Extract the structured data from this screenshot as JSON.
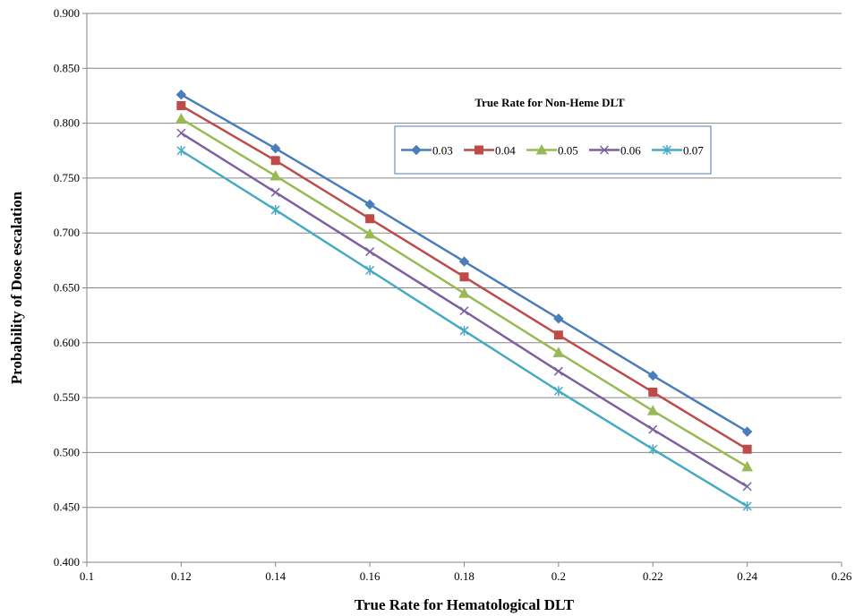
{
  "chart_data": {
    "type": "line",
    "title": "",
    "xlabel": "True Rate for Hematological DLT",
    "ylabel": "Probability of Dose escalation",
    "xlim": [
      0.1,
      0.26
    ],
    "ylim": [
      0.4,
      0.9
    ],
    "x_ticks": [
      "0.1",
      "0.12",
      "0.14",
      "0.16",
      "0.18",
      "0.2",
      "0.22",
      "0.24",
      "0.26"
    ],
    "y_ticks": [
      "0.400",
      "0.450",
      "0.500",
      "0.550",
      "0.600",
      "0.650",
      "0.700",
      "0.750",
      "0.800",
      "0.850",
      "0.900"
    ],
    "grid": "horizontal",
    "legend": {
      "title": "True Rate for Non-Heme DLT",
      "placement": "top-right"
    },
    "x": [
      0.12,
      0.14,
      0.16,
      0.18,
      0.2,
      0.22,
      0.24
    ],
    "series": [
      {
        "name": "0.03",
        "color": "#4a7ebb",
        "marker": "diamond",
        "values": [
          0.826,
          0.777,
          0.726,
          0.674,
          0.622,
          0.57,
          0.519
        ]
      },
      {
        "name": "0.04",
        "color": "#be4b48",
        "marker": "square",
        "values": [
          0.816,
          0.766,
          0.713,
          0.66,
          0.607,
          0.555,
          0.503
        ]
      },
      {
        "name": "0.05",
        "color": "#98b954",
        "marker": "triangle",
        "values": [
          0.804,
          0.752,
          0.699,
          0.645,
          0.591,
          0.538,
          0.487
        ]
      },
      {
        "name": "0.06",
        "color": "#7d60a0",
        "marker": "x",
        "values": [
          0.791,
          0.737,
          0.683,
          0.629,
          0.574,
          0.521,
          0.469
        ]
      },
      {
        "name": "0.07",
        "color": "#46aac5",
        "marker": "star",
        "values": [
          0.775,
          0.721,
          0.666,
          0.611,
          0.556,
          0.503,
          0.451
        ]
      }
    ]
  }
}
